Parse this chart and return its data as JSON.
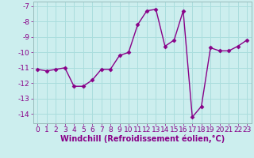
{
  "x": [
    0,
    1,
    2,
    3,
    4,
    5,
    6,
    7,
    8,
    9,
    10,
    11,
    12,
    13,
    14,
    15,
    16,
    17,
    18,
    19,
    20,
    21,
    22,
    23
  ],
  "y": [
    -11.1,
    -11.2,
    -11.1,
    -11.0,
    -12.2,
    -12.2,
    -11.8,
    -11.1,
    -11.1,
    -10.2,
    -10.0,
    -8.2,
    -7.3,
    -7.2,
    -9.6,
    -9.2,
    -7.3,
    -14.2,
    -13.5,
    -9.7,
    -9.9,
    -9.9,
    -9.6,
    -9.2
  ],
  "line_color": "#880088",
  "marker": "D",
  "marker_size": 2.5,
  "bg_color": "#cceeee",
  "grid_color": "#aadddd",
  "xlabel": "Windchill (Refroidissement éolien,°C)",
  "ylim": [
    -14.6,
    -6.7
  ],
  "xlim": [
    -0.5,
    23.5
  ],
  "yticks": [
    -7,
    -8,
    -9,
    -10,
    -11,
    -12,
    -13,
    -14
  ],
  "xticks": [
    0,
    1,
    2,
    3,
    4,
    5,
    6,
    7,
    8,
    9,
    10,
    11,
    12,
    13,
    14,
    15,
    16,
    17,
    18,
    19,
    20,
    21,
    22,
    23
  ],
  "xlabel_fontsize": 7,
  "tick_fontsize": 6.5,
  "line_width": 1.0
}
